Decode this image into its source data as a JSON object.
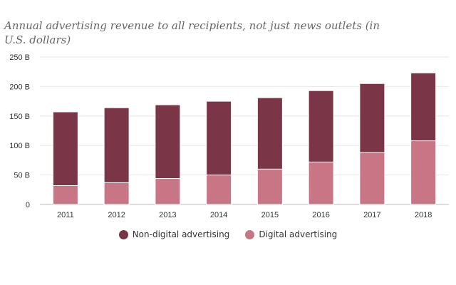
{
  "chart_data": {
    "type": "bar",
    "stacked": true,
    "title": "",
    "subtitle": "Annual advertising revenue to all recipients, not just news outlets (in U.S. dollars)",
    "categories": [
      "2011",
      "2012",
      "2013",
      "2014",
      "2015",
      "2016",
      "2017",
      "2018"
    ],
    "series": [
      {
        "name": "Digital advertising",
        "color": "#c87585",
        "values": [
          32,
          37,
          44,
          50,
          60,
          72,
          88,
          108
        ]
      },
      {
        "name": "Non-digital advertising",
        "color": "#7a3546",
        "values": [
          125,
          127,
          125,
          125,
          121,
          121,
          117,
          115
        ]
      }
    ],
    "legend_order": [
      "Non-digital advertising",
      "Digital advertising"
    ],
    "ylim": [
      0,
      250
    ],
    "yticks": [
      0,
      50,
      100,
      150,
      200,
      250
    ],
    "ytick_labels": [
      "0",
      "50 B",
      "100 B",
      "150 B",
      "200 B",
      "250 B"
    ],
    "xlabel": "",
    "ylabel": "",
    "grid": true,
    "legend_position": "bottom"
  }
}
